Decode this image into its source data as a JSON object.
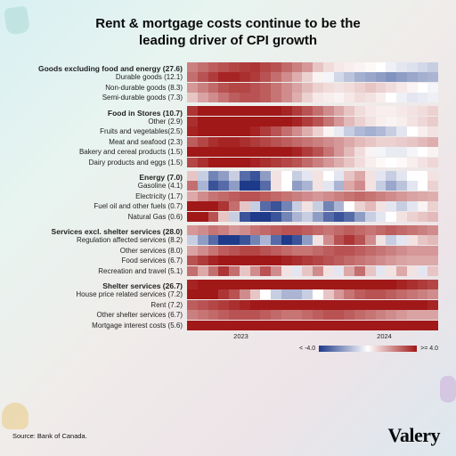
{
  "title_l1": "Rent & mortgage costs continue to be the",
  "title_l2": "leading driver of CPI growth",
  "source": "Source: Bank of Canada.",
  "brand": "Valery",
  "axis": {
    "y2023": "2023",
    "y2024": "2024"
  },
  "legend": {
    "min": "< -4.0",
    "max": ">= 4.0",
    "neg_color": "#1e3a8a",
    "pos_color": "#a11818"
  },
  "colors": {
    "background": "#ffffff",
    "scale_neg": "#1e3a8a",
    "scale_mid": "#ffffff",
    "scale_pos": "#a11818"
  },
  "n_cells": 24,
  "groups": [
    {
      "header": "Goods excluding food and energy (27.6)",
      "header_heat": [
        2.2,
        2.5,
        2.8,
        3.0,
        3.2,
        3.4,
        3.5,
        3.2,
        3.0,
        2.6,
        2.2,
        1.8,
        1.0,
        0.6,
        0.4,
        0.3,
        0.2,
        0.1,
        0.0,
        -0.3,
        -0.5,
        -0.6,
        -0.8,
        -1.0
      ],
      "rows": [
        {
          "label": "Durable goods (12.1)",
          "heat": [
            2.5,
            3.0,
            3.4,
            3.8,
            3.8,
            3.6,
            3.4,
            3.0,
            2.5,
            2.0,
            1.4,
            0.8,
            0.2,
            -0.2,
            -0.8,
            -1.2,
            -1.6,
            -1.8,
            -2.0,
            -2.2,
            -2.0,
            -1.8,
            -1.6,
            -1.5
          ]
        },
        {
          "label": "Non-durable goods (8.3)",
          "heat": [
            1.8,
            2.2,
            2.6,
            3.0,
            3.2,
            3.2,
            3.0,
            2.8,
            2.4,
            2.0,
            1.6,
            1.2,
            0.8,
            0.6,
            0.5,
            0.6,
            0.8,
            1.0,
            0.8,
            0.6,
            0.4,
            0.2,
            0.0,
            -0.2
          ]
        },
        {
          "label": "Semi-durable goods (7.3)",
          "heat": [
            1.0,
            1.6,
            2.0,
            2.4,
            2.8,
            3.0,
            3.0,
            2.8,
            2.4,
            2.0,
            1.4,
            0.8,
            0.4,
            0.3,
            0.2,
            0.4,
            0.6,
            0.5,
            0.3,
            0.0,
            -0.3,
            -0.5,
            -0.4,
            -0.3
          ]
        }
      ]
    },
    {
      "header": "Food in Stores (10.7)",
      "header_heat": [
        3.5,
        4.0,
        4.0,
        4.0,
        4.0,
        4.0,
        4.0,
        4.0,
        4.0,
        3.8,
        3.4,
        3.0,
        2.5,
        2.0,
        1.5,
        1.0,
        0.6,
        0.4,
        0.3,
        0.3,
        0.4,
        0.5,
        0.6,
        0.8
      ],
      "rows": [
        {
          "label": "Other (2.9)",
          "heat": [
            3.6,
            4.0,
            4.0,
            4.0,
            4.0,
            4.0,
            4.0,
            4.0,
            4.0,
            4.0,
            3.8,
            3.4,
            3.0,
            2.4,
            1.8,
            1.2,
            0.8,
            0.5,
            0.3,
            0.2,
            0.3,
            0.5,
            0.7,
            0.9
          ]
        },
        {
          "label": "Fruits and vegetables(2.5)",
          "heat": [
            3.8,
            4.0,
            4.0,
            4.0,
            4.0,
            4.0,
            3.8,
            3.4,
            3.0,
            2.5,
            2.0,
            1.4,
            0.8,
            0.2,
            -0.4,
            -1.0,
            -1.4,
            -1.6,
            -1.4,
            -1.0,
            -0.5,
            0.0,
            0.3,
            0.5
          ]
        },
        {
          "label": "Meat and seafood (2.3)",
          "heat": [
            2.8,
            3.2,
            3.6,
            3.8,
            3.8,
            3.6,
            3.4,
            3.2,
            3.0,
            2.8,
            2.6,
            2.4,
            2.2,
            2.0,
            1.8,
            1.5,
            1.2,
            1.0,
            0.8,
            0.8,
            0.9,
            1.0,
            1.2,
            1.4
          ]
        },
        {
          "label": "Bakery and cereal products (1.5)",
          "heat": [
            4.0,
            4.0,
            4.0,
            4.0,
            4.0,
            4.0,
            4.0,
            4.0,
            4.0,
            4.0,
            3.8,
            3.4,
            3.0,
            2.4,
            1.8,
            1.2,
            0.6,
            0.2,
            -0.2,
            -0.4,
            -0.4,
            -0.2,
            0.0,
            0.2
          ]
        },
        {
          "label": "Dairy products and eggs (1.5)",
          "heat": [
            3.2,
            3.6,
            4.0,
            4.0,
            4.0,
            4.0,
            3.8,
            3.6,
            3.4,
            3.2,
            3.0,
            2.6,
            2.2,
            1.8,
            1.4,
            1.0,
            0.6,
            0.3,
            0.1,
            0.0,
            0.1,
            0.3,
            0.5,
            0.7
          ]
        }
      ]
    },
    {
      "header": "Energy (7.0)",
      "header_heat": [
        1.0,
        -1.0,
        -2.5,
        -2.0,
        -1.0,
        -3.0,
        -3.5,
        -2.0,
        0.5,
        0.0,
        -1.0,
        -0.5,
        0.5,
        0.0,
        -0.5,
        1.0,
        1.5,
        0.5,
        -0.5,
        -1.0,
        -0.5,
        0.0,
        0.0,
        0.5
      ],
      "rows": [
        {
          "label": "Gasoline (4.1)",
          "heat": [
            2.5,
            -1.5,
            -3.5,
            -3.0,
            -2.0,
            -4.0,
            -4.0,
            -3.0,
            0.5,
            0.0,
            -2.0,
            -1.5,
            0.5,
            -0.5,
            -1.5,
            1.5,
            2.0,
            0.5,
            -1.0,
            -1.8,
            -1.2,
            -0.5,
            0.0,
            0.8
          ]
        },
        {
          "label": "Electricity (1.7)",
          "heat": [
            1.5,
            2.0,
            2.4,
            2.6,
            2.8,
            3.0,
            3.0,
            2.8,
            2.6,
            2.4,
            2.2,
            2.0,
            1.8,
            2.0,
            2.2,
            2.4,
            2.6,
            2.4,
            2.2,
            2.0,
            1.8,
            1.6,
            1.5,
            1.4
          ]
        },
        {
          "label": "Fuel oil and other  fuels (0.7)",
          "heat": [
            4.0,
            4.0,
            4.0,
            3.5,
            2.5,
            1.0,
            -1.0,
            -3.0,
            -3.5,
            -2.5,
            -1.0,
            0.5,
            -1.0,
            -2.5,
            -1.5,
            0.0,
            0.8,
            1.2,
            0.5,
            -0.5,
            -1.0,
            -0.5,
            0.2,
            0.8
          ]
        },
        {
          "label": "Natural Gas (0.6)",
          "heat": [
            4.0,
            4.0,
            3.0,
            1.0,
            -1.0,
            -3.5,
            -4.0,
            -4.0,
            -3.5,
            -2.5,
            -1.5,
            -1.0,
            -2.0,
            -3.0,
            -3.5,
            -3.0,
            -2.0,
            -1.0,
            -0.5,
            0.0,
            0.5,
            0.8,
            1.0,
            1.2
          ]
        }
      ]
    },
    {
      "header": "Services excl. shelter services (28.0)",
      "header_heat": [
        1.8,
        2.0,
        2.4,
        2.2,
        1.8,
        2.0,
        2.4,
        2.6,
        2.8,
        3.0,
        3.0,
        2.8,
        2.6,
        2.4,
        2.6,
        2.8,
        2.6,
        2.4,
        2.6,
        2.8,
        2.6,
        2.4,
        2.2,
        2.0
      ],
      "rows": [
        {
          "label": "Regulation affected services (8.2)",
          "heat": [
            -1.0,
            -2.0,
            -3.0,
            -4.0,
            -4.0,
            -3.5,
            -2.5,
            -1.5,
            -3.0,
            -4.0,
            -3.5,
            -2.0,
            0.5,
            2.0,
            3.0,
            3.5,
            3.0,
            2.0,
            0.5,
            -1.0,
            -0.5,
            0.5,
            1.0,
            1.2
          ]
        },
        {
          "label": "Other services (8.0)",
          "heat": [
            1.6,
            2.0,
            2.4,
            2.8,
            3.0,
            3.2,
            3.2,
            3.0,
            2.8,
            2.6,
            2.4,
            2.4,
            2.6,
            2.8,
            3.0,
            3.0,
            2.8,
            2.6,
            2.4,
            2.2,
            2.0,
            1.8,
            1.8,
            1.8
          ]
        },
        {
          "label": "Food services (6.7)",
          "heat": [
            3.0,
            3.4,
            3.8,
            4.0,
            4.0,
            4.0,
            4.0,
            4.0,
            4.0,
            3.8,
            3.6,
            3.4,
            3.2,
            3.0,
            2.8,
            2.6,
            2.4,
            2.2,
            2.0,
            1.8,
            1.6,
            1.5,
            1.5,
            1.5
          ]
        },
        {
          "label": "Recreation and travel (5.1)",
          "heat": [
            2.5,
            1.5,
            2.5,
            3.5,
            2.5,
            1.0,
            2.0,
            3.0,
            2.0,
            0.5,
            -0.5,
            1.0,
            2.0,
            0.5,
            -0.5,
            1.5,
            2.5,
            1.0,
            -0.5,
            0.5,
            1.5,
            0.5,
            -0.5,
            1.0
          ]
        }
      ]
    },
    {
      "header": "Shelter services (26.7)",
      "header_heat": [
        3.8,
        4.0,
        4.0,
        4.0,
        4.0,
        4.0,
        4.0,
        4.0,
        4.0,
        4.0,
        4.0,
        4.0,
        4.0,
        4.0,
        4.0,
        4.0,
        4.0,
        4.0,
        4.0,
        4.0,
        3.8,
        3.6,
        3.4,
        3.2
      ],
      "rows": [
        {
          "label": "House price related services (7.2)",
          "heat": [
            4.0,
            4.0,
            4.0,
            3.5,
            3.0,
            2.0,
            1.0,
            0.0,
            -1.0,
            -1.5,
            -1.5,
            -1.0,
            0.0,
            1.0,
            1.8,
            2.4,
            2.8,
            3.0,
            3.0,
            2.8,
            2.6,
            2.4,
            2.2,
            2.0
          ]
        },
        {
          "label": "Rent (7.2)",
          "heat": [
            2.8,
            3.0,
            3.2,
            3.4,
            3.6,
            3.8,
            4.0,
            4.0,
            4.0,
            4.0,
            4.0,
            4.0,
            4.0,
            4.0,
            4.0,
            4.0,
            4.0,
            4.0,
            4.0,
            4.0,
            4.0,
            4.0,
            4.0,
            3.8
          ]
        },
        {
          "label": "Other shelter services (6.7)",
          "heat": [
            2.2,
            2.4,
            2.6,
            2.8,
            3.0,
            3.0,
            3.0,
            2.8,
            2.6,
            2.4,
            2.4,
            2.6,
            2.8,
            3.0,
            3.0,
            2.8,
            2.6,
            2.4,
            2.2,
            2.0,
            1.8,
            1.6,
            1.6,
            1.6
          ]
        },
        {
          "label": "Mortgage interest costs (5.6)",
          "heat": [
            4.0,
            4.0,
            4.0,
            4.0,
            4.0,
            4.0,
            4.0,
            4.0,
            4.0,
            4.0,
            4.0,
            4.0,
            4.0,
            4.0,
            4.0,
            4.0,
            4.0,
            4.0,
            4.0,
            4.0,
            4.0,
            4.0,
            4.0,
            4.0
          ]
        }
      ]
    }
  ]
}
